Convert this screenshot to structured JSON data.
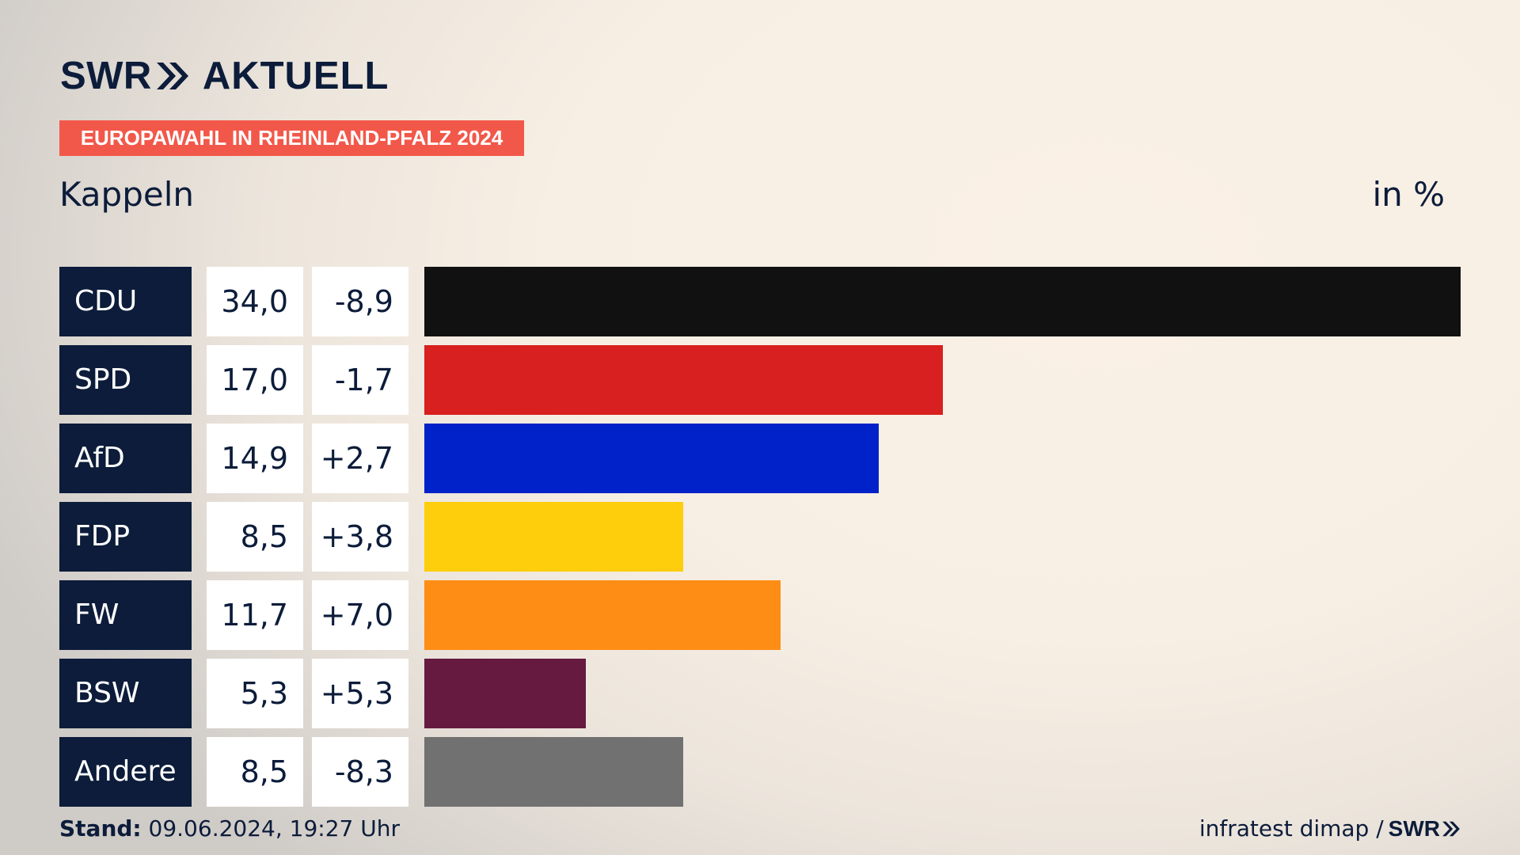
{
  "header": {
    "logo_text": "SWR",
    "logo_suffix": "AKTUELL",
    "tag": "EUROPAWAHL IN RHEINLAND-PFALZ 2024",
    "title": "Kappeln",
    "unit": "in %"
  },
  "colors": {
    "navy": "#0c1c3a",
    "tag_red": "#f2584a"
  },
  "chart_data": {
    "type": "bar",
    "orientation": "horizontal",
    "title": "Kappeln",
    "unit": "in %",
    "categories": [
      "CDU",
      "SPD",
      "AfD",
      "FDP",
      "FW",
      "BSW",
      "Andere"
    ],
    "values": [
      34.0,
      17.0,
      14.9,
      8.5,
      11.7,
      5.3,
      8.5
    ],
    "value_labels": [
      "34,0",
      "17,0",
      "14,9",
      "8,5",
      "11,7",
      "5,3",
      "8,5"
    ],
    "diff_labels": [
      "-8,9",
      "-1,7",
      "+2,7",
      "+3,8",
      "+7,0",
      "+5,3",
      "-8,3"
    ],
    "bar_colors": [
      "#111111",
      "#d7201f",
      "#0022c8",
      "#fecd0b",
      "#fe8d16",
      "#661a3f",
      "#717171"
    ],
    "xlim": [
      0,
      34.0
    ]
  },
  "footer": {
    "stand_label": "Stand:",
    "stand_value": "09.06.2024, 19:27 Uhr",
    "source": "infratest dimap /",
    "source_logo": "SWR"
  }
}
